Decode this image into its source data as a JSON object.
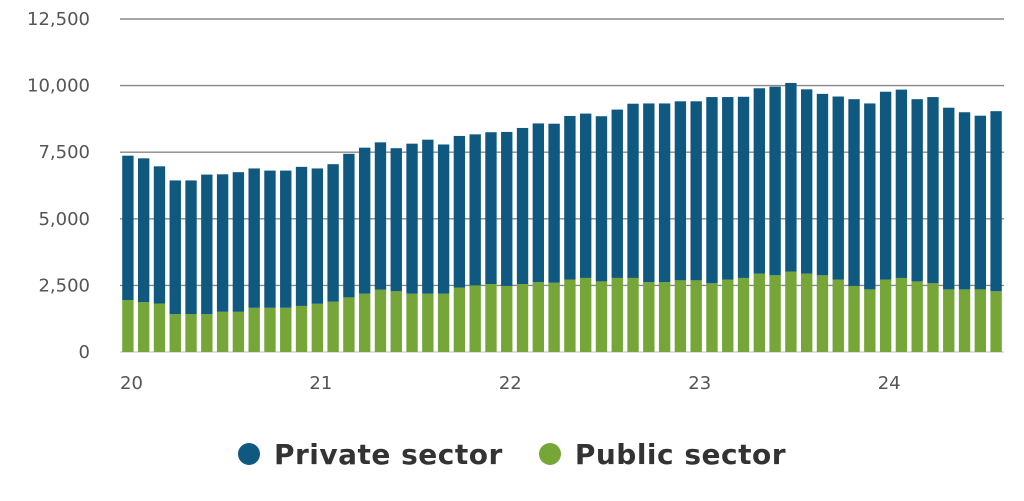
{
  "chart_data": {
    "type": "bar",
    "stacked": true,
    "ylim": [
      0,
      12500
    ],
    "yticks": [
      "0",
      "2,500",
      "5,000",
      "7,500",
      "10,000",
      "12,500"
    ],
    "ytick_values": [
      0,
      2500,
      5000,
      7500,
      10000,
      12500
    ],
    "xticks": [
      "20",
      "21",
      "22",
      "23",
      "24"
    ],
    "xtick_index": [
      0,
      12,
      24,
      36,
      48
    ],
    "grid": "horizontal",
    "legend_position": "bottom-center",
    "colors": {
      "private": "#0f5880",
      "public": "#76a637",
      "grid_line": "#888888"
    },
    "series": [
      {
        "name": "Public sector",
        "color": "#76a637",
        "values": [
          1950,
          1870,
          1820,
          1420,
          1420,
          1420,
          1510,
          1510,
          1660,
          1660,
          1660,
          1730,
          1810,
          1890,
          2050,
          2190,
          2340,
          2280,
          2190,
          2190,
          2190,
          2420,
          2500,
          2550,
          2480,
          2550,
          2620,
          2600,
          2720,
          2780,
          2650,
          2780,
          2780,
          2620,
          2620,
          2690,
          2690,
          2580,
          2720,
          2780,
          2940,
          2880,
          3020,
          2940,
          2880,
          2720,
          2480,
          2350,
          2720,
          2780,
          2650,
          2580,
          2350,
          2350,
          2350,
          2280
        ]
      },
      {
        "name": "Private sector",
        "color": "#0f5880",
        "values": [
          5420,
          5400,
          5150,
          5020,
          5020,
          5240,
          5160,
          5240,
          5230,
          5150,
          5150,
          5220,
          5080,
          5160,
          5390,
          5480,
          5530,
          5370,
          5630,
          5780,
          5600,
          5690,
          5670,
          5700,
          5780,
          5860,
          5960,
          5970,
          6140,
          6170,
          6200,
          6320,
          6540,
          6710,
          6710,
          6720,
          6720,
          6990,
          6850,
          6800,
          6960,
          7080,
          7080,
          6920,
          6810,
          6870,
          7010,
          6980,
          7050,
          7070,
          6840,
          6990,
          6820,
          6650,
          6520,
          6760
        ]
      }
    ]
  },
  "legend": [
    {
      "label": "Private sector",
      "color": "#0f5880"
    },
    {
      "label": "Public sector",
      "color": "#76a637"
    }
  ]
}
